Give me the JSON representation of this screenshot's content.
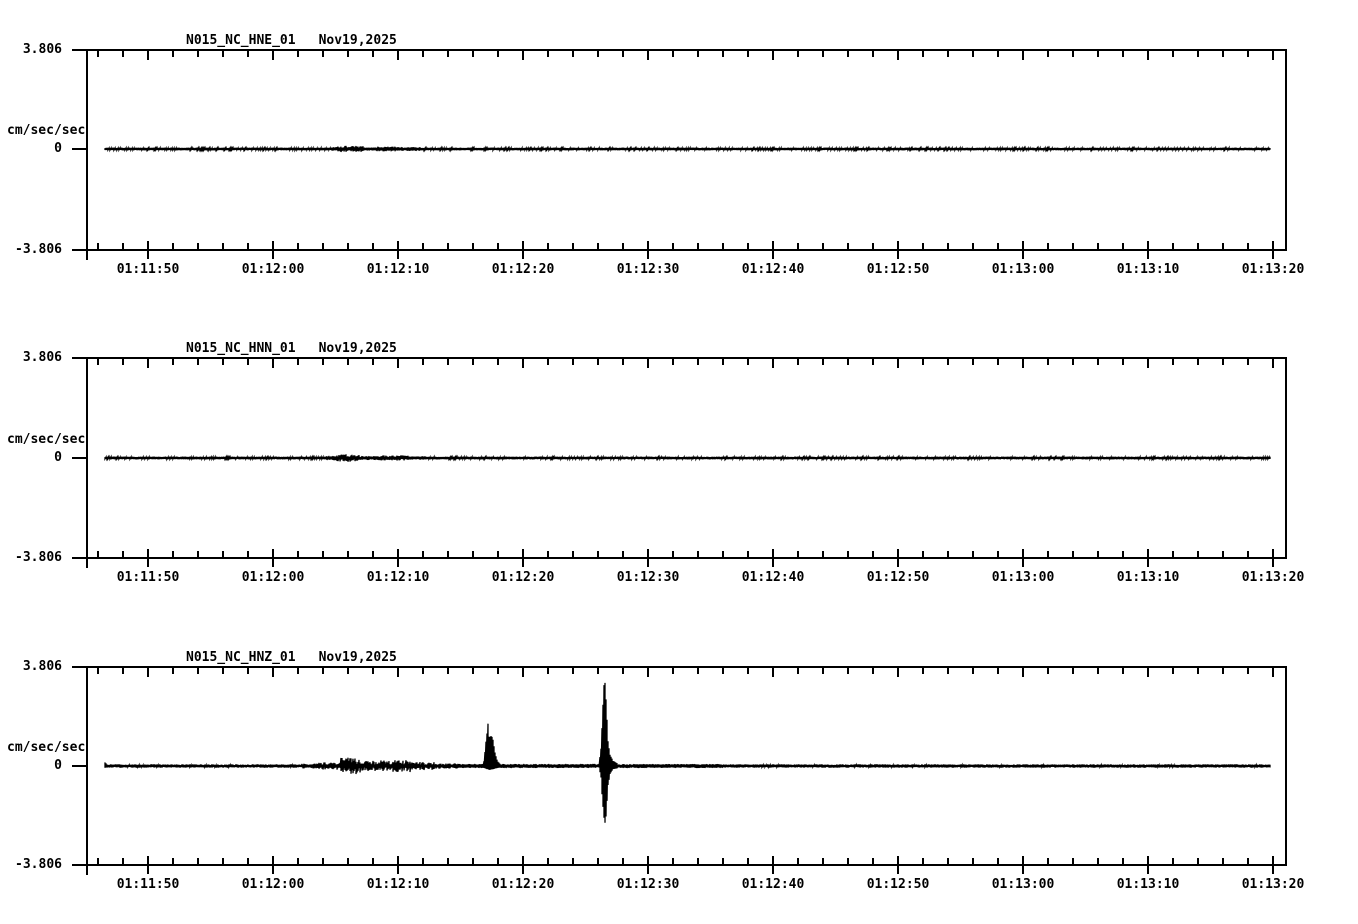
{
  "page": {
    "background_color": "#ffffff",
    "ink_color": "#000000",
    "description": "Three-channel strong-motion seismogram display, station N015, network NC, Nov19,2025"
  },
  "chart_data": [
    {
      "type": "line",
      "title": "N015_NC_HNE_01",
      "date_label": "Nov19,2025",
      "ylabel": "cm/sec/sec",
      "y_max_label": "3.806",
      "y_zero_label": "0",
      "y_min_label": "-3.806",
      "ylim": [
        -3.806,
        3.806
      ],
      "baseline_value": 0,
      "grid": false,
      "legend": false,
      "x_range": [
        "01:11:45",
        "01:13:21"
      ],
      "x_minor_step_sec": 2,
      "x_major_step_sec": 10,
      "x_ticks": [
        "01:11:50",
        "01:12:00",
        "01:12:10",
        "01:12:20",
        "01:12:30",
        "01:12:40",
        "01:12:50",
        "01:13:00",
        "01:13:10",
        "01:13:20"
      ],
      "noise_floor": 0.025,
      "bursts": [
        [
          "01:12:04.6",
          "01:12:05.2",
          0.05
        ],
        [
          "01:12:05.2",
          "01:12:07.2",
          0.095
        ],
        [
          "01:12:07.2",
          "01:12:08.3",
          0.04
        ],
        [
          "01:12:08.3",
          "01:12:09.8",
          0.065
        ],
        [
          "01:12:09.8",
          "01:12:11.8",
          0.05
        ]
      ],
      "packets": []
    },
    {
      "type": "line",
      "title": "N015_NC_HNN_01",
      "date_label": "Nov19,2025",
      "ylabel": "cm/sec/sec",
      "y_max_label": "3.806",
      "y_zero_label": "0",
      "y_min_label": "-3.806",
      "ylim": [
        -3.806,
        3.806
      ],
      "baseline_value": 0,
      "grid": false,
      "legend": false,
      "x_range": [
        "01:11:45",
        "01:13:21"
      ],
      "x_minor_step_sec": 2,
      "x_major_step_sec": 10,
      "x_ticks": [
        "01:11:50",
        "01:12:00",
        "01:12:10",
        "01:12:20",
        "01:12:30",
        "01:12:40",
        "01:12:50",
        "01:13:00",
        "01:13:10",
        "01:13:20"
      ],
      "noise_floor": 0.027,
      "bursts": [
        [
          "01:12:04.3",
          "01:12:04.9",
          0.06
        ],
        [
          "01:12:04.9",
          "01:12:06.9",
          0.125
        ],
        [
          "01:12:06.9",
          "01:12:08.1",
          0.05
        ],
        [
          "01:12:08.1",
          "01:12:10.8",
          0.075
        ],
        [
          "01:12:10.8",
          "01:12:12.2",
          0.04
        ]
      ],
      "packets": []
    },
    {
      "type": "line",
      "title": "N015_NC_HNZ_01",
      "date_label": "Nov19,2025",
      "ylabel": "cm/sec/sec",
      "y_max_label": "3.806",
      "y_zero_label": "0",
      "y_min_label": "-3.806",
      "ylim": [
        -3.806,
        3.806
      ],
      "baseline_value": 0,
      "grid": false,
      "legend": false,
      "x_range": [
        "01:11:45",
        "01:13:21"
      ],
      "x_minor_step_sec": 2,
      "x_major_step_sec": 10,
      "x_ticks": [
        "01:11:50",
        "01:12:00",
        "01:12:10",
        "01:12:20",
        "01:12:30",
        "01:12:40",
        "01:12:50",
        "01:13:00",
        "01:13:10",
        "01:13:20"
      ],
      "noise_floor": 0.04,
      "bursts": [
        [
          "01:12:02.3",
          "01:12:03.5",
          0.07
        ],
        [
          "01:12:03.5",
          "01:12:05.4",
          0.12
        ],
        [
          "01:12:05.4",
          "01:12:07.0",
          0.3
        ],
        [
          "01:12:07.0",
          "01:12:09.0",
          0.19
        ],
        [
          "01:12:09.0",
          "01:12:11.0",
          0.21
        ],
        [
          "01:12:11.0",
          "01:12:13.0",
          0.13
        ],
        [
          "01:12:13.0",
          "01:12:14.8",
          0.08
        ],
        [
          "01:12:14.8",
          "01:12:36.0",
          0.055
        ]
      ],
      "packets": [
        {
          "name": "start-blip",
          "points": [
            [
              "01:11:46.3",
              0.02,
              0.02
            ],
            [
              "01:11:46.5",
              0.16,
              0.05
            ],
            [
              "01:11:46.75",
              0.02,
              0.02
            ]
          ]
        },
        {
          "name": "small-wave-packet",
          "points": [
            [
              "01:12:16.85",
              0.04,
              0.03
            ],
            [
              "01:12:17.0",
              0.7,
              0.08
            ],
            [
              "01:12:17.1",
              1.25,
              0.1
            ],
            [
              "01:12:17.2",
              1.62,
              0.1
            ],
            [
              "01:12:17.3",
              1.05,
              0.14
            ],
            [
              "01:12:17.45",
              1.22,
              0.12
            ],
            [
              "01:12:17.6",
              1.0,
              0.1
            ],
            [
              "01:12:17.75",
              0.55,
              0.08
            ],
            [
              "01:12:17.95",
              0.18,
              0.05
            ],
            [
              "01:12:18.2",
              0.04,
              0.03
            ]
          ]
        },
        {
          "name": "main-spike",
          "points": [
            [
              "01:12:26.1",
              0.07,
              0.07
            ],
            [
              "01:12:26.25",
              0.7,
              0.45
            ],
            [
              "01:12:26.35",
              1.8,
              1.4
            ],
            [
              "01:12:26.45",
              2.9,
              1.9
            ],
            [
              "01:12:26.5",
              3.35,
              2.05
            ],
            [
              "01:12:26.6",
              3.2,
              2.35
            ],
            [
              "01:12:26.7",
              2.0,
              1.6
            ],
            [
              "01:12:26.8",
              1.0,
              0.75
            ],
            [
              "01:12:26.95",
              0.45,
              0.3
            ],
            [
              "01:12:27.2",
              0.18,
              0.1
            ],
            [
              "01:12:27.6",
              0.07,
              0.06
            ]
          ]
        }
      ]
    }
  ]
}
